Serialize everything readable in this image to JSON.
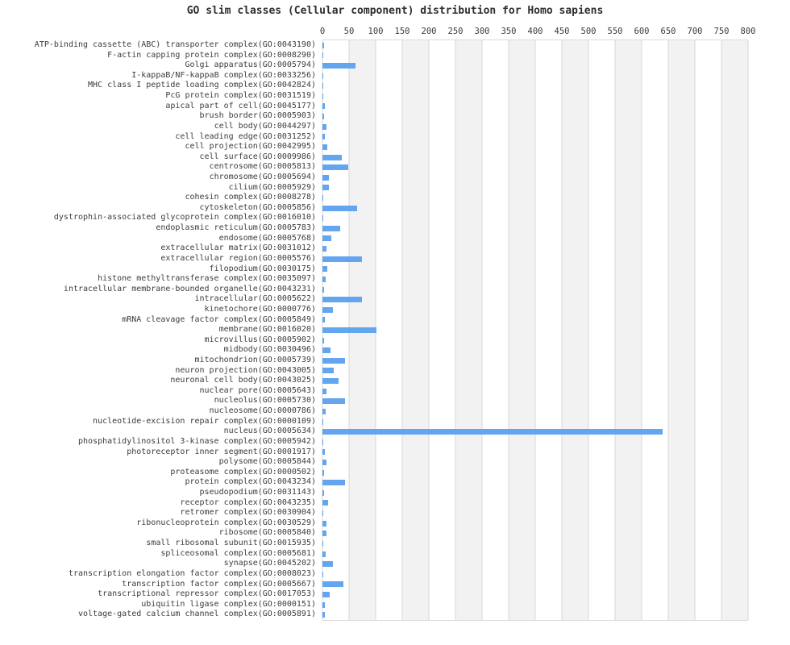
{
  "page": {
    "title": "GO slim classes (Cellular component) distribution for Homo sapiens"
  },
  "chart_data": {
    "type": "bar",
    "orientation": "horizontal",
    "title": "GO slim classes (Cellular component) distribution for Homo sapiens",
    "xlabel": "",
    "ylabel": "",
    "xlim": [
      0,
      800
    ],
    "x_ticks": [
      0,
      50,
      100,
      150,
      200,
      250,
      300,
      350,
      400,
      450,
      500,
      550,
      600,
      650,
      700,
      750,
      800
    ],
    "legend": "none",
    "grid": "vertical gridlines every 50 with alternating 50-unit background bands",
    "bar_color": "#63a5ef",
    "band_color": "#f2f2f2",
    "grid_color": "#d7d7d7",
    "text_color": "#3c3c3c",
    "categories": [
      "ATP-binding cassette (ABC) transporter complex(GO:0043190)",
      "F-actin capping protein complex(GO:0008290)",
      "Golgi apparatus(GO:0005794)",
      "I-kappaB/NF-kappaB complex(GO:0033256)",
      "MHC class I peptide loading complex(GO:0042824)",
      "PcG protein complex(GO:0031519)",
      "apical part of cell(GO:0045177)",
      "brush border(GO:0005903)",
      "cell body(GO:0044297)",
      "cell leading edge(GO:0031252)",
      "cell projection(GO:0042995)",
      "cell surface(GO:0009986)",
      "centrosome(GO:0005813)",
      "chromosome(GO:0005694)",
      "cilium(GO:0005929)",
      "cohesin complex(GO:0008278)",
      "cytoskeleton(GO:0005856)",
      "dystrophin-associated glycoprotein complex(GO:0016010)",
      "endoplasmic reticulum(GO:0005783)",
      "endosome(GO:0005768)",
      "extracellular matrix(GO:0031012)",
      "extracellular region(GO:0005576)",
      "filopodium(GO:0030175)",
      "histone methyltransferase complex(GO:0035097)",
      "intracellular membrane-bounded organelle(GO:0043231)",
      "intracellular(GO:0005622)",
      "kinetochore(GO:0000776)",
      "mRNA cleavage factor complex(GO:0005849)",
      "membrane(GO:0016020)",
      "microvillus(GO:0005902)",
      "midbody(GO:0030496)",
      "mitochondrion(GO:0005739)",
      "neuron projection(GO:0043005)",
      "neuronal cell body(GO:0043025)",
      "nuclear pore(GO:0005643)",
      "nucleolus(GO:0005730)",
      "nucleosome(GO:0000786)",
      "nucleotide-excision repair complex(GO:0000109)",
      "nucleus(GO:0005634)",
      "phosphatidylinositol 3-kinase complex(GO:0005942)",
      "photoreceptor inner segment(GO:0001917)",
      "polysome(GO:0005844)",
      "proteasome complex(GO:0000502)",
      "protein complex(GO:0043234)",
      "pseudopodium(GO:0031143)",
      "receptor complex(GO:0043235)",
      "retromer complex(GO:0030904)",
      "ribonucleoprotein complex(GO:0030529)",
      "ribosome(GO:0005840)",
      "small ribosomal subunit(GO:0015935)",
      "spliceosomal complex(GO:0005681)",
      "synapse(GO:0045202)",
      "transcription elongation factor complex(GO:0008023)",
      "transcription factor complex(GO:0005667)",
      "transcriptional repressor complex(GO:0017053)",
      "ubiquitin ligase complex(GO:0000151)",
      "voltage-gated calcium channel complex(GO:0005891)"
    ],
    "values": [
      3,
      2,
      62,
      2,
      2,
      2,
      5,
      3,
      7,
      5,
      9,
      36,
      49,
      12,
      12,
      2,
      65,
      2,
      34,
      17,
      7,
      74,
      9,
      6,
      3,
      74,
      20,
      4,
      101,
      3,
      15,
      43,
      21,
      30,
      7,
      43,
      6,
      2,
      640,
      2,
      5,
      8,
      3,
      42,
      3,
      10,
      2,
      8,
      7,
      2,
      6,
      20,
      2,
      39,
      14,
      5,
      5
    ]
  }
}
